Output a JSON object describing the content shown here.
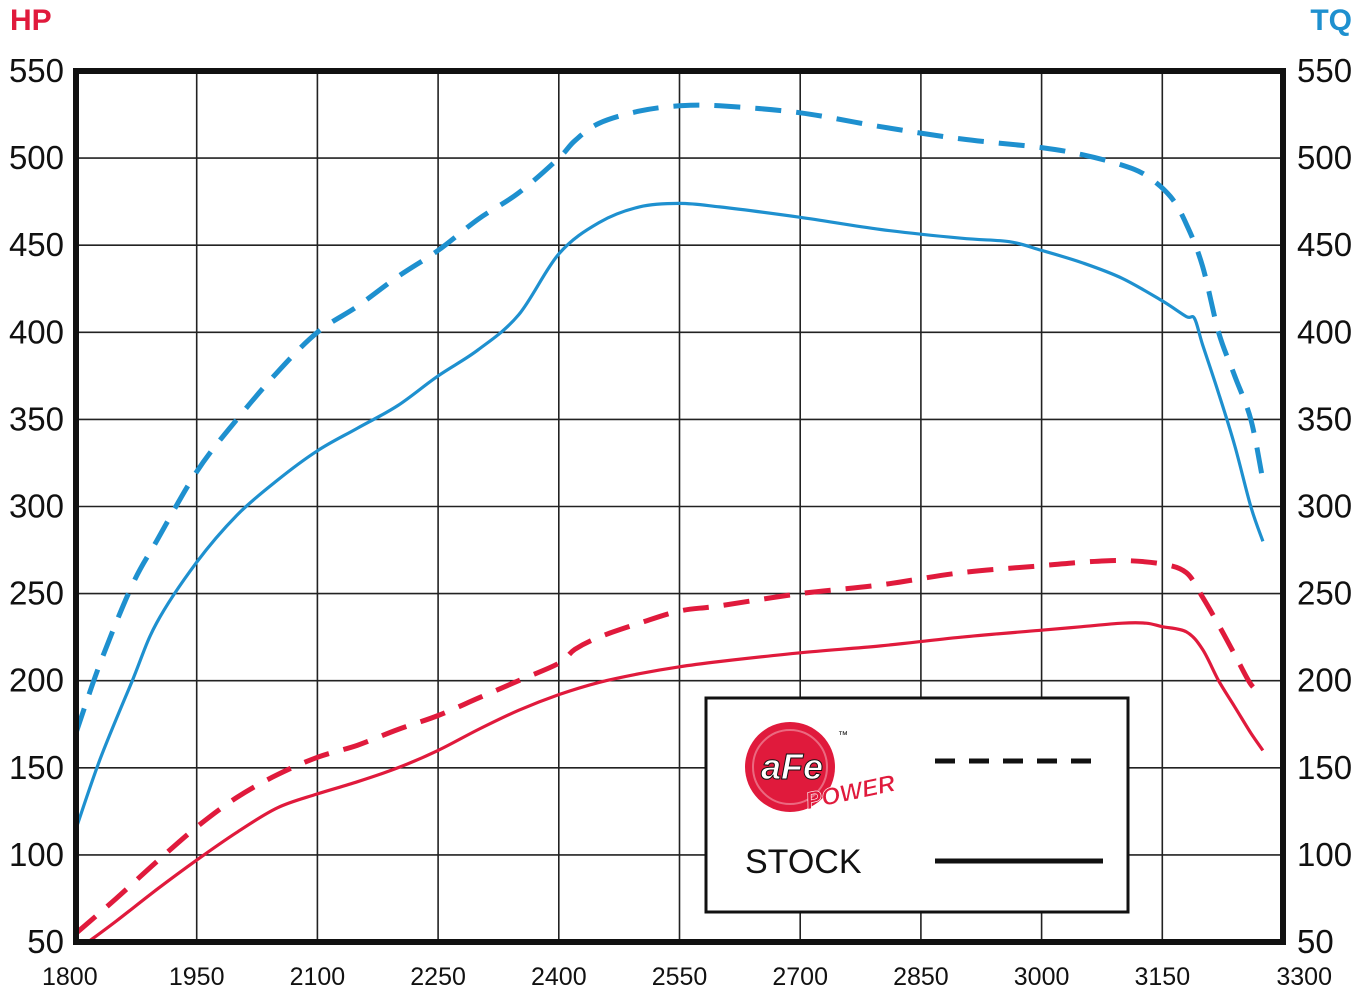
{
  "chart_data": {
    "type": "line",
    "y_left_title": "HP",
    "y_right_title": "TQ",
    "xlim": [
      1800,
      3300
    ],
    "ylim": [
      50,
      550
    ],
    "x_ticks": [
      "1800",
      "1950",
      "2100",
      "2250",
      "2400",
      "2550",
      "2700",
      "2850",
      "3000",
      "3150",
      "3300"
    ],
    "y_ticks": [
      "550",
      "500",
      "450",
      "400",
      "350",
      "300",
      "250",
      "200",
      "150",
      "100",
      "50"
    ],
    "grid": true,
    "legend_position": "bottom-right",
    "legend": {
      "logo_text": "aFe",
      "logo_subtext": "POWER",
      "logo_tm": "™",
      "stock_label": "STOCK"
    },
    "colors": {
      "hp": "#e01a3c",
      "tq": "#1e90cf",
      "hp_title": "#e01a3c",
      "tq_title": "#1e90cf"
    },
    "series": [
      {
        "metric": "TQ",
        "style": "dashed",
        "x": [
          1800,
          1830,
          1870,
          1900,
          1950,
          2000,
          2050,
          2100,
          2150,
          2200,
          2250,
          2300,
          2350,
          2400,
          2420,
          2450,
          2500,
          2550,
          2600,
          2700,
          2800,
          2900,
          3000,
          3050,
          3100,
          3130,
          3160,
          3180,
          3200,
          3220,
          3240,
          3260,
          3275
        ],
        "y": [
          170,
          210,
          255,
          280,
          320,
          350,
          377,
          400,
          415,
          432,
          447,
          465,
          480,
          500,
          510,
          520,
          527,
          530,
          530,
          526,
          518,
          511,
          506,
          502,
          496,
          490,
          478,
          462,
          438,
          400,
          375,
          350,
          315
        ]
      },
      {
        "metric": "TQ",
        "style": "solid",
        "x": [
          1800,
          1830,
          1870,
          1900,
          1950,
          2000,
          2050,
          2100,
          2150,
          2200,
          2250,
          2300,
          2350,
          2400,
          2450,
          2500,
          2550,
          2600,
          2700,
          2800,
          2900,
          2960,
          3000,
          3050,
          3100,
          3150,
          3180,
          3190,
          3200,
          3220,
          3240,
          3260,
          3275
        ],
        "y": [
          115,
          155,
          200,
          233,
          268,
          295,
          315,
          332,
          345,
          358,
          375,
          390,
          410,
          445,
          463,
          472,
          474,
          472,
          466,
          459,
          454,
          452,
          447,
          440,
          431,
          418,
          409,
          408,
          393,
          365,
          335,
          300,
          280
        ]
      },
      {
        "metric": "HP",
        "style": "dashed",
        "x": [
          1800,
          1850,
          1900,
          1950,
          2000,
          2050,
          2100,
          2150,
          2200,
          2250,
          2300,
          2350,
          2400,
          2420,
          2450,
          2500,
          2550,
          2600,
          2700,
          2800,
          2900,
          3000,
          3050,
          3100,
          3150,
          3180,
          3200,
          3220,
          3240,
          3260,
          3275
        ],
        "y": [
          55,
          75,
          96,
          116,
          133,
          146,
          156,
          163,
          172,
          180,
          190,
          200,
          210,
          218,
          225,
          233,
          240,
          243,
          250,
          255,
          262,
          266,
          268,
          269,
          267,
          262,
          248,
          232,
          215,
          198,
          192
        ]
      },
      {
        "metric": "HP",
        "style": "solid",
        "x": [
          1815,
          1850,
          1900,
          1950,
          2000,
          2050,
          2100,
          2150,
          2200,
          2250,
          2300,
          2350,
          2400,
          2450,
          2500,
          2550,
          2600,
          2700,
          2800,
          2900,
          3000,
          3050,
          3100,
          3130,
          3150,
          3180,
          3200,
          3220,
          3240,
          3260,
          3275
        ],
        "y": [
          50,
          62,
          80,
          97,
          113,
          127,
          135,
          142,
          150,
          160,
          172,
          183,
          192,
          199,
          204,
          208,
          211,
          216,
          220,
          225,
          229,
          231,
          233,
          233,
          231,
          228,
          218,
          200,
          185,
          170,
          160
        ]
      }
    ]
  }
}
